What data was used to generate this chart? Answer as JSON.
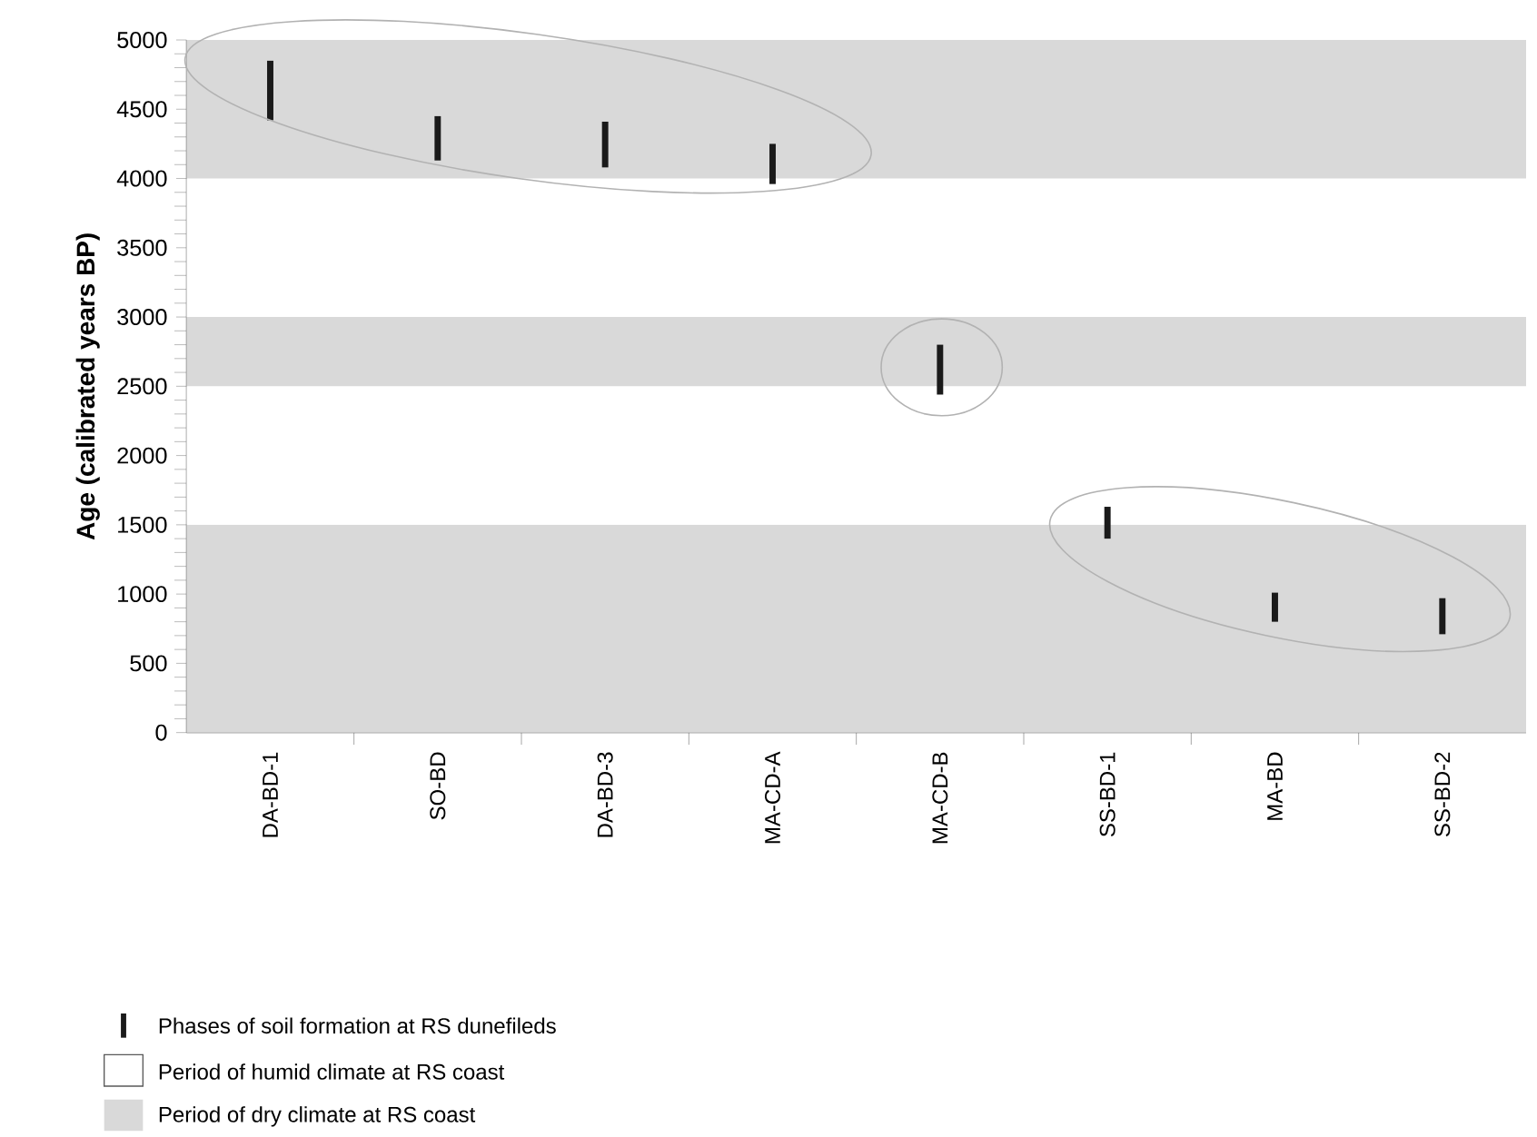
{
  "chart_data": {
    "type": "bar",
    "ylabel": "Age (calibrated years BP)",
    "categories": [
      "DA-BD-1",
      "SO-BD",
      "DA-BD-3",
      "MA-CD-A",
      "MA-CD-B",
      "SS-BD-1",
      "MA-BD",
      "SS-BD-2"
    ],
    "series": [
      {
        "name": "Phases  of soil formation at RS dunefileds",
        "color": "#1a1a1a",
        "base": [
          4420,
          4130,
          4080,
          3960,
          2440,
          1400,
          800,
          710
        ],
        "values": [
          430,
          320,
          330,
          290,
          360,
          230,
          210,
          260
        ]
      }
    ],
    "ylim": [
      0,
      5000
    ],
    "yticks": [
      0,
      500,
      1000,
      1500,
      2000,
      2500,
      3000,
      3500,
      4000,
      4500,
      5000
    ],
    "bands": [
      {
        "axis": "y",
        "from": 0,
        "to": 1500,
        "label": "Period of dry climate at RS coast",
        "color": "#d9d9d9"
      },
      {
        "axis": "y",
        "from": 1500,
        "to": 2500,
        "label": "Period of humid climate at RS coast",
        "color": "#ffffff"
      },
      {
        "axis": "y",
        "from": 2500,
        "to": 3000,
        "color": "#d9d9d9"
      },
      {
        "axis": "y",
        "from": 3000,
        "to": 4000,
        "color": "#ffffff"
      },
      {
        "axis": "y",
        "from": 4000,
        "to": 5000,
        "color": "#d9d9d9"
      }
    ],
    "grid": false,
    "legend": "bottom left"
  }
}
